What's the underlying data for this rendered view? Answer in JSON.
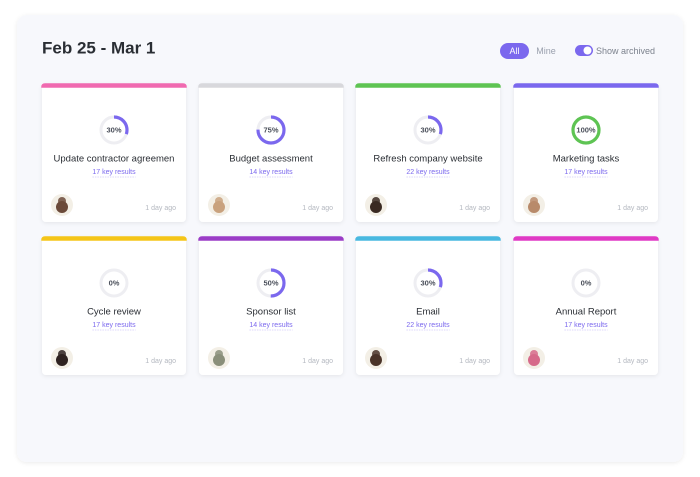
{
  "header": {
    "title": "Feb 25 - Mar 1",
    "filters": [
      "All",
      "Mine"
    ],
    "toggle_label": "Show archived"
  },
  "cards": [
    {
      "title": "Update contractor agreemen",
      "progress": 30,
      "progress_label": "30%",
      "key_results": "17 key results",
      "time": "1 day ago",
      "color": "#f06ab0",
      "ring_color": "#7b68ee",
      "avatar": "#6b4a3a"
    },
    {
      "title": "Budget assessment",
      "progress": 75,
      "progress_label": "75%",
      "key_results": "14 key results",
      "time": "1 day ago",
      "color": "#d8d8dc",
      "ring_color": "#7b68ee",
      "avatar": "#c9a27e"
    },
    {
      "title": "Refresh company website",
      "progress": 30,
      "progress_label": "30%",
      "key_results": "22 key results",
      "time": "1 day ago",
      "color": "#5ec453",
      "ring_color": "#7b68ee",
      "avatar": "#3a2a22"
    },
    {
      "title": "Marketing tasks",
      "progress": 100,
      "progress_label": "100%",
      "key_results": "17 key results",
      "time": "1 day ago",
      "color": "#7b68ee",
      "ring_color": "#5ec453",
      "avatar": "#b88a6a"
    },
    {
      "title": "Cycle review",
      "progress": 0,
      "progress_label": "0%",
      "key_results": "17 key results",
      "time": "1 day ago",
      "color": "#f5c518",
      "ring_color": "#7b68ee",
      "avatar": "#2e2220"
    },
    {
      "title": "Sponsor list",
      "progress": 50,
      "progress_label": "50%",
      "key_results": "14 key results",
      "time": "1 day ago",
      "color": "#9b3dc7",
      "ring_color": "#7b68ee",
      "avatar": "#8a8f7a"
    },
    {
      "title": "Email",
      "progress": 30,
      "progress_label": "30%",
      "key_results": "22 key results",
      "time": "1 day ago",
      "color": "#49b8e0",
      "ring_color": "#7b68ee",
      "avatar": "#4a3328"
    },
    {
      "title": "Annual Report",
      "progress": 0,
      "progress_label": "0%",
      "key_results": "17 key results",
      "time": "1 day ago",
      "color": "#e03ac5",
      "ring_color": "#7b68ee",
      "avatar": "#d66a8a"
    }
  ]
}
